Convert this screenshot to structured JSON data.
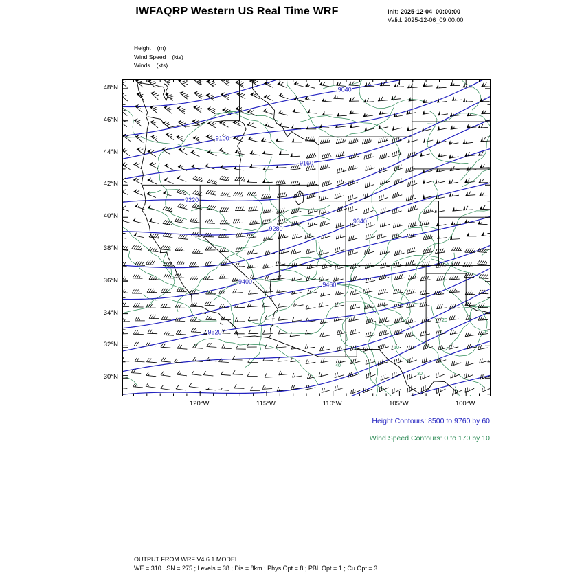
{
  "header": {
    "title": "IWFAQRP Western US Real Time WRF",
    "init_line": "Init: 2025-12-04_00:00:00",
    "valid_line": "Valid: 2025-12-06_09:00:00"
  },
  "legend": {
    "items": [
      {
        "label": "Height",
        "unit": "(m)"
      },
      {
        "label": "Wind Speed",
        "unit": "(kts)"
      },
      {
        "label": "Winds",
        "unit": "(kts)"
      }
    ]
  },
  "notes": {
    "height": "Height Contours: 8500 to 9760 by 60",
    "wind": "Wind Speed Contours: 0 to 170 by 10"
  },
  "footer": {
    "line1": "OUTPUT FROM WRF V4.6.1 MODEL",
    "line2": "WE = 310 ; SN = 275 ; Levels = 38 ; Dis = 8km ; Phys Opt = 8 ; PBL Opt = 1 ; Cu Opt = 3"
  },
  "colors": {
    "height_contour": "#2222c0",
    "wind_speed_contour": "#2e8b57",
    "map_outline": "#000000",
    "wind_barb": "#000000"
  },
  "chart_data": {
    "type": "contour",
    "title": "IWFAQRP Western US Real Time WRF",
    "region": "Western US",
    "init_time": "2025-12-04_00:00:00",
    "valid_time": "2025-12-06_09:00:00",
    "fields": [
      {
        "name": "Height",
        "unit": "m",
        "style": "blue contour lines",
        "min": 8500,
        "max": 9760,
        "interval": 60
      },
      {
        "name": "Wind Speed",
        "unit": "kts",
        "style": "green contour lines",
        "min": 0,
        "max": 170,
        "interval": 10
      },
      {
        "name": "Winds",
        "unit": "kts",
        "style": "black wind barbs on model grid"
      }
    ],
    "x_axis": {
      "ticks": [
        "120°W",
        "115°W",
        "110°W",
        "105°W",
        "100°W"
      ],
      "lon_values": [
        -120,
        -115,
        -110,
        -105,
        -100
      ],
      "lon_range": [
        -125.8,
        -98.2
      ]
    },
    "y_axis": {
      "ticks": [
        "48°N",
        "46°N",
        "44°N",
        "42°N",
        "40°N",
        "38°N",
        "36°N",
        "34°N",
        "32°N",
        "30°N"
      ],
      "lat_values": [
        48,
        46,
        44,
        42,
        40,
        38,
        36,
        34,
        32,
        30
      ],
      "lat_range": [
        28.9,
        48.55
      ]
    },
    "height_contour_values_drawn": [
      8920,
      8980,
      9040,
      9100,
      9160,
      9220,
      9280,
      9340,
      9400,
      9460,
      9520,
      9580,
      9640,
      9700,
      9760
    ],
    "height_contour_labels": [
      9040,
      9100,
      9160,
      9220,
      9280,
      9340,
      9400,
      9460,
      9520
    ],
    "wind_speed_contour_labels": [
      10,
      20,
      30,
      40
    ],
    "grid": false,
    "legend_position": "below-right"
  }
}
